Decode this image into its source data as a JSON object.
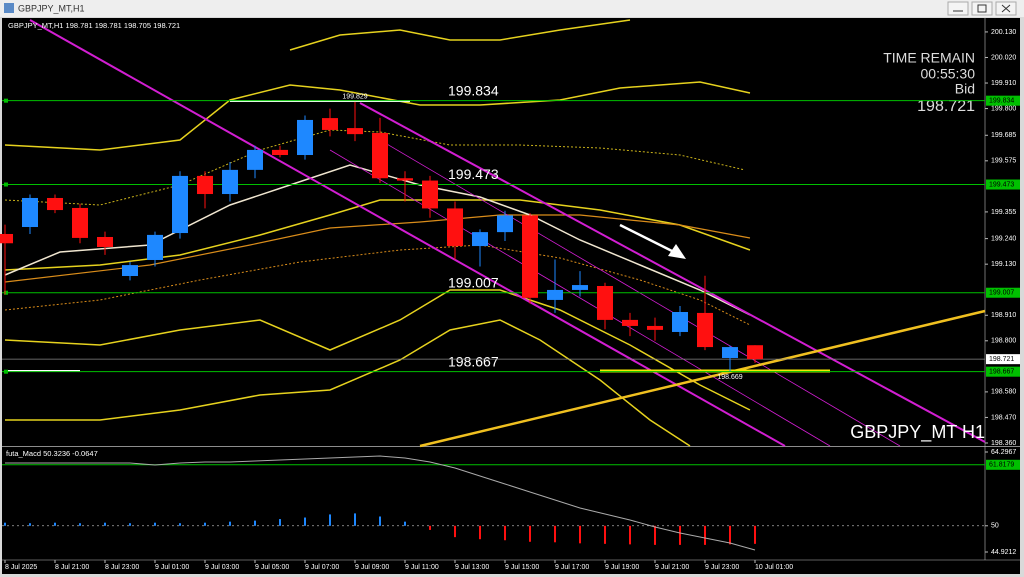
{
  "window_title": "GBPJPY_MT,H1",
  "chart_data": {
    "type": "candlestick",
    "info": "GBPJPY_MT,H1 198.781 198.781 198.705 198.721",
    "watermark": "GBPJPY_MT H1",
    "timer": {
      "title": "TIME REMAIN",
      "time": "00:55:30",
      "label": "Bid",
      "price": 198.721
    },
    "categories": [
      "8 Jul 2025",
      null,
      "8 Jul 21:00",
      null,
      "8 Jul 23:00",
      null,
      "9 Jul 01:00",
      null,
      "9 Jul 03:00",
      null,
      "9 Jul 05:00",
      null,
      "9 Jul 07:00",
      null,
      "9 Jul 09:00",
      null,
      "9 Jul 11:00",
      null,
      "9 Jul 13:00",
      null,
      "9 Jul 15:00",
      null,
      "9 Jul 17:00",
      null,
      "9 Jul 19:00",
      null,
      "9 Jul 21:00",
      null,
      "9 Jul 23:00",
      null,
      "10 Jul 01:00"
    ],
    "open": [
      199.26,
      199.29,
      199.415,
      199.372,
      199.247,
      199.079,
      199.148,
      199.264,
      199.51,
      199.432,
      199.536,
      199.622,
      199.6,
      199.759,
      199.716,
      199.695,
      199.5,
      199.49,
      199.37,
      199.208,
      199.268,
      199.34,
      198.976,
      199.019,
      199.036,
      198.89,
      198.864,
      198.838,
      198.92,
      198.726,
      198.781
    ],
    "high": [
      199.3,
      199.43,
      199.43,
      199.39,
      199.27,
      199.14,
      199.27,
      199.53,
      199.53,
      199.57,
      199.64,
      199.64,
      199.77,
      199.8,
      199.829,
      199.76,
      199.53,
      199.51,
      199.4,
      199.28,
      199.36,
      199.35,
      199.15,
      199.1,
      199.05,
      198.92,
      198.9,
      198.95,
      199.08,
      198.78,
      198.781
    ],
    "low": [
      199.0,
      199.26,
      199.35,
      199.22,
      199.17,
      199.06,
      199.12,
      199.24,
      199.37,
      199.4,
      199.5,
      199.59,
      199.58,
      199.68,
      199.66,
      199.48,
      199.4,
      199.33,
      199.15,
      199.12,
      199.23,
      198.96,
      198.92,
      198.99,
      198.85,
      198.82,
      198.8,
      198.82,
      198.76,
      198.669,
      198.705
    ],
    "close": [
      199.22,
      199.415,
      199.363,
      199.243,
      199.204,
      199.126,
      199.256,
      199.51,
      199.432,
      199.536,
      199.622,
      199.6,
      199.751,
      199.708,
      199.69,
      199.5,
      199.49,
      199.37,
      199.208,
      199.268,
      199.34,
      198.985,
      199.019,
      199.04,
      198.89,
      198.864,
      198.847,
      198.924,
      198.773,
      198.773,
      198.721
    ],
    "up_color": "#1e88ff",
    "down_color": "#ff1010",
    "ylim": [
      198.347,
      200.19
    ],
    "yticks": [
      {
        "value": 200.13,
        "label": "200.130"
      },
      {
        "value": 200.02,
        "label": "200.020"
      },
      {
        "value": 199.91,
        "label": "199.910"
      },
      {
        "value": 199.8,
        "label": "199.800"
      },
      199.685,
      199.575,
      199.355,
      {
        "value": 199.24,
        "label": "199.240"
      },
      {
        "value": 199.13,
        "label": "199.130"
      },
      {
        "value": 198.91,
        "label": "198.910"
      },
      {
        "value": 198.8,
        "label": "198.800"
      },
      {
        "value": 198.58,
        "label": "198.580"
      },
      {
        "value": 198.47,
        "label": "198.470"
      },
      {
        "value": 198.36,
        "label": "198.360"
      }
    ],
    "levels": [
      199.834,
      199.473,
      199.007,
      198.667
    ],
    "level_color": "#00c000",
    "bid": 198.721,
    "indicator": {
      "type": "macd",
      "label": "futa_Macd 50.3236 -0.0647",
      "histogram": [
        50.6,
        50.5,
        50.6,
        50.5,
        50.6,
        50.5,
        50.6,
        50.5,
        50.6,
        50.8,
        51,
        51.3,
        51.6,
        52.2,
        52.4,
        51.8,
        50.8,
        49.2,
        47.8,
        47.4,
        47.2,
        46.9,
        46.8,
        46.6,
        46.5,
        46.4,
        46.3,
        46.3,
        46.3,
        46.4,
        46.5
      ],
      "signal": [
        62.16,
        62.16,
        62.16,
        62.16,
        62.16,
        62.16,
        61.78,
        62.16,
        62.36,
        62.36,
        62.55,
        62.75,
        62.94,
        63.13,
        63.33,
        63.52,
        63.13,
        62.36,
        61.2,
        59.65,
        58.1,
        56.55,
        55.0,
        53.45,
        52.28,
        51.12,
        49.76,
        48.6,
        47.63,
        46.66,
        45.3
      ],
      "ylim": [
        43.952,
        65.072
      ],
      "yticks": [
        64.2967,
        50,
        44.9212
      ],
      "level": 61.8179
    }
  }
}
